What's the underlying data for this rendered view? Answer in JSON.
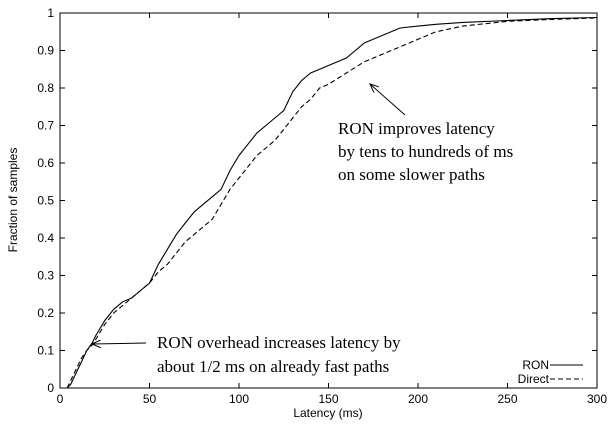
{
  "chart_data": {
    "type": "line",
    "xlabel": "Latency (ms)",
    "ylabel": "Fraction of samples",
    "xlim": [
      0,
      300
    ],
    "ylim": [
      0,
      1
    ],
    "x_ticks": [
      "0",
      "50",
      "100",
      "150",
      "200",
      "250",
      "300"
    ],
    "y_ticks": [
      "0",
      "0.1",
      "0.2",
      "0.3",
      "0.4",
      "0.5",
      "0.6",
      "0.7",
      "0.8",
      "0.9",
      "1"
    ],
    "grid": false,
    "legend_position": "bottom-right",
    "series": [
      {
        "name": "RON",
        "style": "solid",
        "color": "#000000",
        "points": [
          [
            4,
            0
          ],
          [
            6,
            0.01
          ],
          [
            8,
            0.03
          ],
          [
            10,
            0.05
          ],
          [
            12,
            0.07
          ],
          [
            15,
            0.1
          ],
          [
            18,
            0.12
          ],
          [
            20,
            0.14
          ],
          [
            25,
            0.18
          ],
          [
            30,
            0.21
          ],
          [
            35,
            0.23
          ],
          [
            40,
            0.24
          ],
          [
            45,
            0.26
          ],
          [
            50,
            0.28
          ],
          [
            55,
            0.33
          ],
          [
            60,
            0.37
          ],
          [
            65,
            0.41
          ],
          [
            70,
            0.44
          ],
          [
            75,
            0.47
          ],
          [
            80,
            0.49
          ],
          [
            85,
            0.51
          ],
          [
            90,
            0.53
          ],
          [
            95,
            0.58
          ],
          [
            100,
            0.62
          ],
          [
            105,
            0.65
          ],
          [
            110,
            0.68
          ],
          [
            115,
            0.7
          ],
          [
            120,
            0.72
          ],
          [
            125,
            0.74
          ],
          [
            130,
            0.79
          ],
          [
            135,
            0.82
          ],
          [
            140,
            0.84
          ],
          [
            145,
            0.85
          ],
          [
            150,
            0.86
          ],
          [
            160,
            0.88
          ],
          [
            170,
            0.92
          ],
          [
            180,
            0.94
          ],
          [
            190,
            0.96
          ],
          [
            200,
            0.965
          ],
          [
            210,
            0.97
          ],
          [
            225,
            0.975
          ],
          [
            250,
            0.98
          ],
          [
            275,
            0.985
          ],
          [
            300,
            0.988
          ]
        ]
      },
      {
        "name": "Direct",
        "style": "dashed",
        "color": "#000000",
        "points": [
          [
            4,
            0
          ],
          [
            6,
            0.02
          ],
          [
            8,
            0.04
          ],
          [
            10,
            0.06
          ],
          [
            12,
            0.08
          ],
          [
            15,
            0.1
          ],
          [
            18,
            0.115
          ],
          [
            20,
            0.13
          ],
          [
            25,
            0.17
          ],
          [
            30,
            0.2
          ],
          [
            35,
            0.22
          ],
          [
            40,
            0.24
          ],
          [
            45,
            0.26
          ],
          [
            50,
            0.28
          ],
          [
            55,
            0.31
          ],
          [
            60,
            0.33
          ],
          [
            65,
            0.36
          ],
          [
            70,
            0.39
          ],
          [
            75,
            0.41
          ],
          [
            80,
            0.43
          ],
          [
            85,
            0.45
          ],
          [
            90,
            0.49
          ],
          [
            95,
            0.53
          ],
          [
            100,
            0.56
          ],
          [
            105,
            0.59
          ],
          [
            110,
            0.62
          ],
          [
            115,
            0.64
          ],
          [
            120,
            0.66
          ],
          [
            125,
            0.69
          ],
          [
            130,
            0.72
          ],
          [
            135,
            0.75
          ],
          [
            140,
            0.77
          ],
          [
            145,
            0.8
          ],
          [
            150,
            0.81
          ],
          [
            160,
            0.84
          ],
          [
            170,
            0.87
          ],
          [
            180,
            0.89
          ],
          [
            190,
            0.91
          ],
          [
            200,
            0.93
          ],
          [
            210,
            0.95
          ],
          [
            225,
            0.965
          ],
          [
            250,
            0.978
          ],
          [
            275,
            0.983
          ],
          [
            300,
            0.987
          ]
        ]
      }
    ],
    "annotations": [
      {
        "id": "top",
        "lines": [
          "RON improves latency",
          "by tens to hundreds of ms",
          "on some slower paths"
        ],
        "arrow_to": [
          143,
          0.86
        ]
      },
      {
        "id": "bottom",
        "lines": [
          "RON overhead increases latency by",
          "about 1/2 ms on already fast paths"
        ],
        "arrow_to": [
          17,
          0.1
        ]
      }
    ]
  }
}
